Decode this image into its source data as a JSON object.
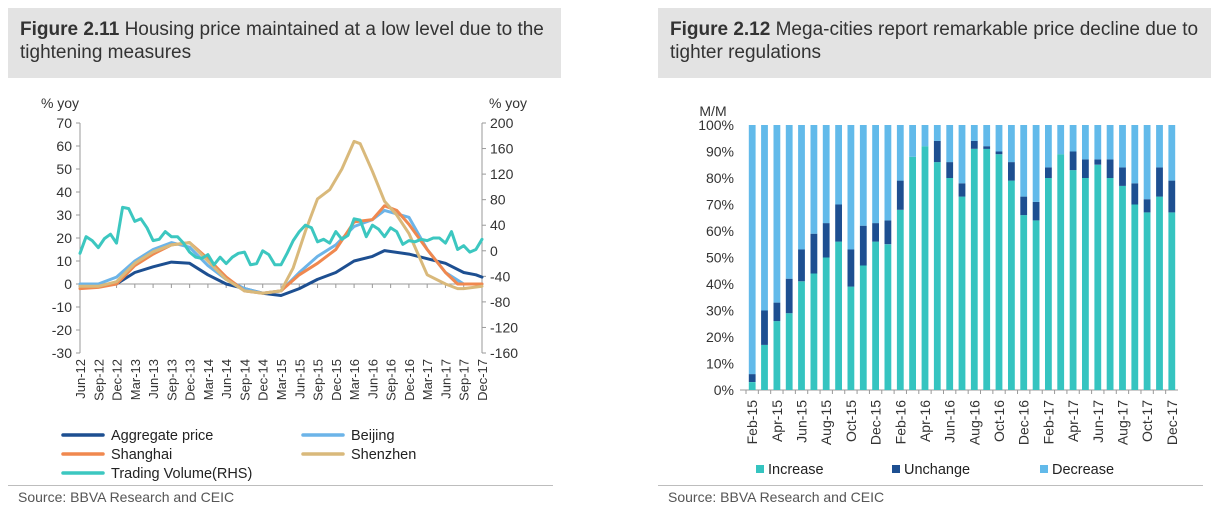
{
  "chart_data": [
    {
      "type": "line",
      "figure_label": "Figure 2.11",
      "title": "Housing price maintained at a low level due to the tightening measures",
      "ylabel_left": "% yoy",
      "ylabel_right": "% yoy",
      "ylim_left": [
        -30,
        70
      ],
      "ylim_right": [
        -160,
        200
      ],
      "yticks_left": [
        70,
        60,
        50,
        40,
        30,
        20,
        10,
        0,
        -10,
        -20,
        -30
      ],
      "yticks_right": [
        200,
        160,
        120,
        80,
        40,
        0,
        -40,
        -80,
        -120,
        -160
      ],
      "x_tick_labels": [
        "Jun-12",
        "Sep-12",
        "Dec-12",
        "Mar-13",
        "Jun-13",
        "Sep-13",
        "Dec-13",
        "Mar-14",
        "Jun-14",
        "Sep-14",
        "Dec-14",
        "Mar-15",
        "Jun-15",
        "Sep-15",
        "Dec-15",
        "Mar-16",
        "Jun-16",
        "Sep-16",
        "Dec-16",
        "Mar-17",
        "Jun-17",
        "Sep-17",
        "Dec-17"
      ],
      "x_tick_positions": [
        0,
        3,
        6,
        9,
        12,
        15,
        18,
        21,
        24,
        27,
        30,
        33,
        36,
        39,
        42,
        45,
        48,
        51,
        54,
        57,
        60,
        63,
        66
      ],
      "series": [
        {
          "name": "Aggregate price",
          "axis": "left",
          "color": "#1d4f91",
          "points": [
            [
              0,
              -1
            ],
            [
              6,
              0
            ],
            [
              9,
              5
            ],
            [
              12,
              7.5
            ],
            [
              15,
              9.5
            ],
            [
              18,
              9
            ],
            [
              21,
              4
            ],
            [
              24,
              0
            ],
            [
              27,
              -2
            ],
            [
              30,
              -4
            ],
            [
              33,
              -5
            ],
            [
              36,
              -2
            ],
            [
              39,
              2
            ],
            [
              42,
              5
            ],
            [
              45,
              10
            ],
            [
              48,
              12
            ],
            [
              50,
              14.5
            ],
            [
              54,
              13
            ],
            [
              57,
              11
            ],
            [
              60,
              9
            ],
            [
              63,
              5
            ],
            [
              65,
              4
            ],
            [
              66,
              3
            ]
          ]
        },
        {
          "name": "Beijing",
          "axis": "left",
          "color": "#6cb4e8",
          "points": [
            [
              0,
              0
            ],
            [
              3,
              0
            ],
            [
              6,
              3
            ],
            [
              9,
              10
            ],
            [
              12,
              15
            ],
            [
              15,
              18
            ],
            [
              18,
              16
            ],
            [
              21,
              8
            ],
            [
              24,
              2
            ],
            [
              27,
              -2
            ],
            [
              30,
              -4
            ],
            [
              33,
              -3
            ],
            [
              36,
              5
            ],
            [
              39,
              12
            ],
            [
              42,
              17
            ],
            [
              45,
              25
            ],
            [
              48,
              28
            ],
            [
              50,
              32
            ],
            [
              54,
              29
            ],
            [
              57,
              15
            ],
            [
              60,
              5
            ],
            [
              63,
              0
            ],
            [
              66,
              0
            ]
          ]
        },
        {
          "name": "Shanghai",
          "axis": "left",
          "color": "#f0884f",
          "points": [
            [
              0,
              -2
            ],
            [
              3,
              -1.5
            ],
            [
              6,
              0
            ],
            [
              9,
              8
            ],
            [
              12,
              13
            ],
            [
              15,
              17
            ],
            [
              18,
              18
            ],
            [
              21,
              11
            ],
            [
              24,
              3
            ],
            [
              27,
              -3
            ],
            [
              30,
              -4
            ],
            [
              33,
              -3
            ],
            [
              36,
              4
            ],
            [
              39,
              9
            ],
            [
              42,
              15
            ],
            [
              45,
              27
            ],
            [
              48,
              28
            ],
            [
              50,
              34
            ],
            [
              52,
              32
            ],
            [
              54,
              26
            ],
            [
              57,
              15
            ],
            [
              60,
              5
            ],
            [
              62,
              0
            ],
            [
              66,
              0
            ]
          ]
        },
        {
          "name": "Shenzhen",
          "axis": "left",
          "color": "#d9b97b",
          "points": [
            [
              0,
              -1
            ],
            [
              3,
              -1
            ],
            [
              6,
              1
            ],
            [
              9,
              9
            ],
            [
              12,
              14
            ],
            [
              15,
              17
            ],
            [
              18,
              18
            ],
            [
              21,
              10
            ],
            [
              24,
              2
            ],
            [
              27,
              -3
            ],
            [
              30,
              -4
            ],
            [
              33,
              -3
            ],
            [
              35,
              7
            ],
            [
              37,
              23
            ],
            [
              39,
              37
            ],
            [
              41,
              41
            ],
            [
              43,
              50
            ],
            [
              45,
              62
            ],
            [
              46,
              61
            ],
            [
              48,
              49
            ],
            [
              50,
              36
            ],
            [
              52,
              30
            ],
            [
              54,
              22
            ],
            [
              57,
              4
            ],
            [
              60,
              0
            ],
            [
              62,
              -2
            ],
            [
              63,
              -2
            ],
            [
              66,
              -1
            ]
          ]
        },
        {
          "name": "Trading Volume(RHS)",
          "axis": "right",
          "color": "#3cc7c0",
          "points": [
            [
              0,
              -4
            ],
            [
              1,
              22
            ],
            [
              2,
              16
            ],
            [
              3,
              5
            ],
            [
              4,
              19
            ],
            [
              5,
              26
            ],
            [
              6,
              12
            ],
            [
              7,
              68
            ],
            [
              8,
              66
            ],
            [
              9,
              46
            ],
            [
              10,
              50
            ],
            [
              11,
              36
            ],
            [
              12,
              16
            ],
            [
              13,
              18
            ],
            [
              14,
              30
            ],
            [
              15,
              22
            ],
            [
              16,
              22
            ],
            [
              17,
              12
            ],
            [
              18,
              -2
            ],
            [
              19,
              -10
            ],
            [
              20,
              -12
            ],
            [
              21,
              -6
            ],
            [
              22,
              -22
            ],
            [
              23,
              -10
            ],
            [
              24,
              -20
            ],
            [
              25,
              -10
            ],
            [
              26,
              -4
            ],
            [
              27,
              -2
            ],
            [
              28,
              -22
            ],
            [
              29,
              -20
            ],
            [
              30,
              0
            ],
            [
              31,
              -6
            ],
            [
              32,
              -22
            ],
            [
              33,
              -22
            ],
            [
              34,
              -4
            ],
            [
              35,
              16
            ],
            [
              36,
              30
            ],
            [
              37,
              40
            ],
            [
              38,
              36
            ],
            [
              39,
              14
            ],
            [
              40,
              18
            ],
            [
              41,
              12
            ],
            [
              42,
              30
            ],
            [
              43,
              18
            ],
            [
              44,
              24
            ],
            [
              45,
              50
            ],
            [
              46,
              48
            ],
            [
              47,
              22
            ],
            [
              48,
              40
            ],
            [
              49,
              34
            ],
            [
              50,
              22
            ],
            [
              51,
              36
            ],
            [
              52,
              30
            ],
            [
              53,
              10
            ],
            [
              54,
              16
            ],
            [
              55,
              14
            ],
            [
              56,
              18
            ],
            [
              57,
              16
            ],
            [
              58,
              20
            ],
            [
              59,
              20
            ],
            [
              60,
              12
            ],
            [
              61,
              30
            ],
            [
              62,
              2
            ],
            [
              63,
              8
            ],
            [
              64,
              -2
            ],
            [
              65,
              2
            ],
            [
              66,
              18
            ]
          ]
        }
      ],
      "legend": [
        "Aggregate price",
        "Beijing",
        "Shanghai",
        "Shenzhen",
        "Trading Volume(RHS)"
      ],
      "legend_position": "bottom",
      "source": "Source: BBVA Research and CEIC"
    },
    {
      "type": "bar",
      "stacked": true,
      "figure_label": "Figure 2.12",
      "title": "Mega-cities report remarkable price decline due to tighter regulations",
      "ylabel": "M/M",
      "ylim": [
        0,
        100
      ],
      "yticks": [
        "100%",
        "90%",
        "80%",
        "70%",
        "60%",
        "50%",
        "40%",
        "30%",
        "20%",
        "10%",
        "0%"
      ],
      "categories": [
        "Feb-15",
        "Mar-15",
        "Apr-15",
        "May-15",
        "Jun-15",
        "Jul-15",
        "Aug-15",
        "Sep-15",
        "Oct-15",
        "Nov-15",
        "Dec-15",
        "Jan-16",
        "Feb-16",
        "Mar-16",
        "Apr-16",
        "May-16",
        "Jun-16",
        "Jul-16",
        "Aug-16",
        "Sep-16",
        "Oct-16",
        "Nov-16",
        "Dec-16",
        "Jan-17",
        "Feb-17",
        "Mar-17",
        "Apr-17",
        "May-17",
        "Jun-17",
        "Jul-17",
        "Aug-17",
        "Sep-17",
        "Oct-17",
        "Nov-17",
        "Dec-17"
      ],
      "x_tick_labels": [
        "Feb-15",
        "Apr-15",
        "Jun-15",
        "Aug-15",
        "Oct-15",
        "Dec-15",
        "Feb-16",
        "Apr-16",
        "Jun-16",
        "Aug-16",
        "Oct-16",
        "Dec-16",
        "Feb-17",
        "Apr-17",
        "Jun-17",
        "Aug-17",
        "Oct-17",
        "Dec-17"
      ],
      "series": [
        {
          "name": "Increase",
          "color": "#35c4c0",
          "values": [
            3,
            17,
            26,
            29,
            41,
            44,
            50,
            56,
            39,
            47,
            56,
            55,
            68,
            88,
            92,
            86,
            80,
            73,
            91,
            91,
            89,
            79,
            66,
            64,
            80,
            89,
            83,
            80,
            85,
            80,
            77,
            70,
            67,
            73,
            67
          ]
        },
        {
          "name": "Unchange",
          "color": "#1d4f91",
          "values": [
            3,
            13,
            7,
            13,
            12,
            15,
            13,
            14,
            14,
            15,
            7,
            9,
            11,
            0,
            0,
            8,
            6,
            5,
            3,
            1,
            1,
            7,
            7,
            7,
            4,
            0,
            7,
            7,
            2,
            7,
            7,
            8,
            5,
            11,
            12
          ]
        },
        {
          "name": "Decrease",
          "color": "#62baea",
          "values": [
            94,
            70,
            67,
            58,
            47,
            41,
            37,
            30,
            47,
            38,
            37,
            36,
            21,
            12,
            8,
            6,
            14,
            22,
            6,
            8,
            10,
            14,
            27,
            29,
            16,
            11,
            10,
            13,
            13,
            13,
            16,
            22,
            28,
            16,
            21
          ]
        }
      ],
      "legend": [
        "Increase",
        "Unchange",
        "Decrease"
      ],
      "legend_position": "bottom",
      "source": "Source: BBVA Research and CEIC"
    }
  ]
}
